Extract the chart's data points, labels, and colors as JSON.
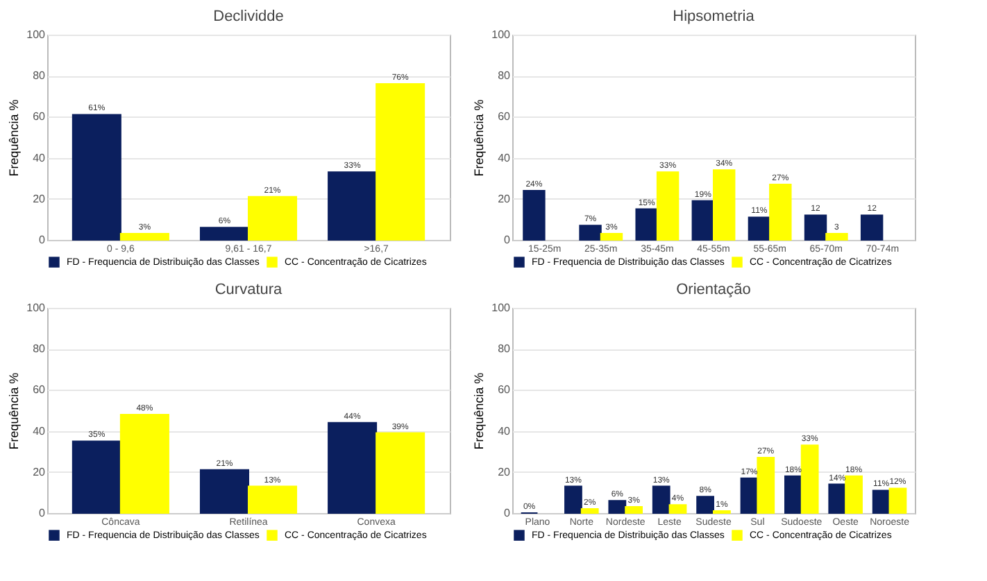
{
  "chart_data": [
    {
      "type": "bar",
      "title": "Declividde",
      "ylabel": "Frequência %",
      "categories": [
        "0 - 9,6",
        "9,61 - 16,7",
        ">16,7"
      ],
      "series": [
        {
          "name": "FD - Frequencia de Distribuição das Classes",
          "color": "#0b1f5e",
          "values": [
            61,
            6,
            33
          ],
          "value_labels": [
            "61%",
            "6%",
            "33%"
          ]
        },
        {
          "name": "CC - Concentração de Cicatrizes",
          "color": "#ffff00",
          "values": [
            3,
            21,
            76
          ],
          "value_labels": [
            "3%",
            "21%",
            "76%"
          ]
        }
      ],
      "ylim": [
        0,
        100
      ],
      "yticks": [
        0,
        20,
        40,
        60,
        80,
        100
      ],
      "grid": "y",
      "legend": "bottom"
    },
    {
      "type": "bar",
      "title": "Hipsometria",
      "ylabel": "Frequência %",
      "categories": [
        "15-25m",
        "25-35m",
        "35-45m",
        "45-55m",
        "55-65m",
        "65-70m",
        "70-74m"
      ],
      "series": [
        {
          "name": "FD - Frequencia de Distribuição das Classes",
          "color": "#0b1f5e",
          "values": [
            24,
            7,
            15,
            19,
            11,
            12,
            12
          ],
          "value_labels": [
            "24%",
            "7%",
            "15%",
            "19%",
            "11%",
            "12",
            "12"
          ]
        },
        {
          "name": "CC - Concentração de Cicatrizes",
          "color": "#ffff00",
          "values": [
            null,
            3,
            33,
            34,
            27,
            3,
            null
          ],
          "value_labels": [
            null,
            "3%",
            "33%",
            "34%",
            "27%",
            "3",
            null
          ]
        }
      ],
      "ylim": [
        0,
        100
      ],
      "yticks": [
        0,
        20,
        40,
        60,
        80,
        100
      ],
      "grid": "y",
      "legend": "bottom"
    },
    {
      "type": "bar",
      "title": "Curvatura",
      "ylabel": "Frequência %",
      "categories": [
        "Côncava",
        "Retilínea",
        "Convexa"
      ],
      "series": [
        {
          "name": "FD - Frequencia de Distribuição das Classes",
          "color": "#0b1f5e",
          "values": [
            35,
            21,
            44
          ],
          "value_labels": [
            "35%",
            "21%",
            "44%"
          ]
        },
        {
          "name": "CC - Concentração de Cicatrizes",
          "color": "#ffff00",
          "values": [
            48,
            13,
            39
          ],
          "value_labels": [
            "48%",
            "13%",
            "39%"
          ]
        }
      ],
      "ylim": [
        0,
        100
      ],
      "yticks": [
        0,
        20,
        40,
        60,
        80,
        100
      ],
      "grid": "y",
      "legend": "bottom"
    },
    {
      "type": "bar",
      "title": "Orientação",
      "ylabel": "Frequência %",
      "categories": [
        "Plano",
        "Norte",
        "Nordeste",
        "Leste",
        "Sudeste",
        "Sul",
        "Sudoeste",
        "Oeste",
        "Noroeste"
      ],
      "series": [
        {
          "name": "FD - Frequencia de Distribuição das Classes",
          "color": "#0b1f5e",
          "values": [
            0,
            13,
            6,
            13,
            8,
            17,
            18,
            14,
            11
          ],
          "value_labels": [
            "0%",
            "13%",
            "6%",
            "13%",
            "8%",
            "17%",
            "18%",
            "14%",
            "11%"
          ]
        },
        {
          "name": "CC - Concentração de Cicatrizes",
          "color": "#ffff00",
          "values": [
            null,
            2,
            3,
            4,
            1,
            27,
            33,
            18,
            12
          ],
          "value_labels": [
            null,
            "2%",
            "3%",
            "4%",
            "1%",
            "27%",
            "33%",
            "18%",
            "12%"
          ]
        }
      ],
      "ylim": [
        0,
        100
      ],
      "yticks": [
        0,
        20,
        40,
        60,
        80,
        100
      ],
      "grid": "y",
      "legend": "bottom"
    }
  ]
}
